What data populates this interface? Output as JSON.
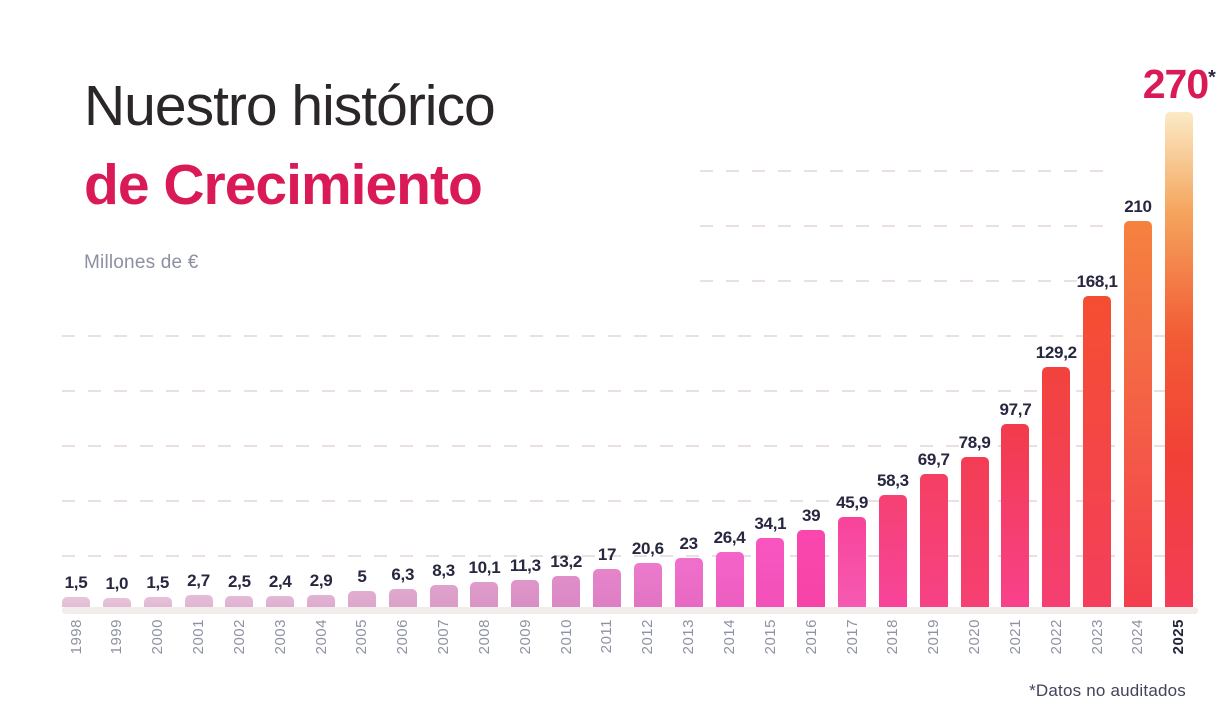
{
  "title": {
    "line1": "Nuestro histórico",
    "line2": "de Crecimiento",
    "unit_label": "Millones de €"
  },
  "footnote": "*Datos no auditados",
  "accent_color": "#DA1A56",
  "chart_data": {
    "type": "bar",
    "title": "Nuestro histórico de Crecimiento",
    "ylabel": "Millones de €",
    "xlabel": "",
    "ylim": [
      0,
      270
    ],
    "grid": "dashed horizontal",
    "gridline_levels": [
      30,
      60,
      90,
      120,
      150,
      180,
      210,
      240
    ],
    "legend": "none",
    "categories": [
      "1998",
      "1999",
      "2000",
      "2001",
      "2002",
      "2003",
      "2004",
      "2005",
      "2006",
      "2007",
      "2008",
      "2009",
      "2010",
      "2011",
      "2012",
      "2013",
      "2014",
      "2015",
      "2016",
      "2017",
      "2018",
      "2019",
      "2020",
      "2021",
      "2022",
      "2023",
      "2024",
      "2025"
    ],
    "values": [
      1.5,
      1.0,
      1.5,
      2.7,
      2.5,
      2.4,
      2.9,
      5,
      6.3,
      8.3,
      10.1,
      11.3,
      13.2,
      17,
      20.6,
      23,
      26.4,
      34.1,
      39,
      45.9,
      58.3,
      69.7,
      78.9,
      97.7,
      129.2,
      168.1,
      210,
      270
    ],
    "value_labels": [
      "1,5",
      "1,0",
      "1,5",
      "2,7",
      "2,5",
      "2,4",
      "2,9",
      "5",
      "6,3",
      "8,3",
      "10,1",
      "11,3",
      "13,2",
      "17",
      "20,6",
      "23",
      "26,4",
      "34,1",
      "39",
      "45,9",
      "58,3",
      "69,7",
      "78,9",
      "97,7",
      "129,2",
      "168,1",
      "210",
      "270"
    ],
    "highlight_index": 27,
    "highlight_suffix": "*",
    "highlight_note": "Datos no auditados",
    "bar_colors": [
      [
        "#E8C5DB",
        "#E3BDD6"
      ],
      [
        "#E7C3DA",
        "#E2BBD5"
      ],
      [
        "#E6C1D9",
        "#E1B8D4"
      ],
      [
        "#E5BDD7",
        "#E0B5D2"
      ],
      [
        "#E4BAD6",
        "#DFB2D1"
      ],
      [
        "#E3B7D5",
        "#DEAFCF"
      ],
      [
        "#E2B3D3",
        "#DDABCE"
      ],
      [
        "#E1AED1",
        "#DCA7CB"
      ],
      [
        "#E0A9CF",
        "#DBA1C9"
      ],
      [
        "#E0A2CD",
        "#DA9BC7"
      ],
      [
        "#DF9CCB",
        "#D995C5"
      ],
      [
        "#DF96C9",
        "#D88FC3"
      ],
      [
        "#E18EC9",
        "#D989C4"
      ],
      [
        "#E684CB",
        "#DD7FC4"
      ],
      [
        "#EC7ACC",
        "#E274C3"
      ],
      [
        "#F16FCC",
        "#E769C2"
      ],
      [
        "#F663CA",
        "#EC5EC0"
      ],
      [
        "#F955C1",
        "#F151B8"
      ],
      [
        "#FA47AF",
        "#F544A7"
      ],
      [
        "#F8439A",
        "#F65AB2"
      ],
      [
        "#F64172",
        "#F7449B"
      ],
      [
        "#F53F62",
        "#F64286"
      ],
      [
        "#F43D54",
        "#F54074"
      ],
      [
        "#F23B4A",
        "#F8418C"
      ],
      [
        "#F2423D",
        "#F53F72"
      ],
      [
        "#F44E31",
        "#F43E5B"
      ],
      [
        "#F5823F",
        "#F33D4D"
      ],
      [
        "#FBEAC6",
        "#F5A55D 20%",
        "#F25C36 45%",
        "#F14037 70%",
        "#F43D58"
      ]
    ]
  }
}
